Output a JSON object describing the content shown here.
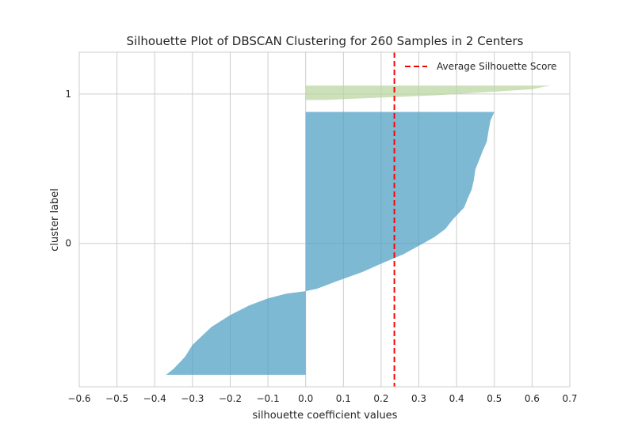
{
  "chart_data": {
    "type": "area",
    "title": "Silhouette Plot of DBSCAN Clustering for 260 Samples in 2 Centers",
    "xlabel": "silhouette coefficient values",
    "ylabel": "cluster label",
    "xlim": [
      -0.6,
      0.7
    ],
    "ylim": [
      -10,
      270
    ],
    "x_ticks": [
      "−0.6",
      "−0.5",
      "−0.4",
      "−0.3",
      "−0.2",
      "−0.1",
      "0.0",
      "0.1",
      "0.2",
      "0.3",
      "0.4",
      "0.5",
      "0.6",
      "0.7"
    ],
    "x_tick_values": [
      -0.6,
      -0.5,
      -0.4,
      -0.3,
      -0.2,
      -0.1,
      0.0,
      0.1,
      0.2,
      0.3,
      0.4,
      0.5,
      0.6,
      0.7
    ],
    "y_ticks": [
      "0",
      "1"
    ],
    "y_tick_values": [
      110,
      235
    ],
    "grid": true,
    "legend_position": "top-right",
    "average_line": {
      "label": "Average Silhouette Score",
      "x": 0.235,
      "color": "#ff0000"
    },
    "clusters": [
      {
        "label": "0",
        "color": "#4c9ec4",
        "y_start": 0,
        "y_end": 220,
        "profile": [
          [
            0.5,
            220
          ],
          [
            0.49,
            213
          ],
          [
            0.485,
            205
          ],
          [
            0.48,
            195
          ],
          [
            0.47,
            188
          ],
          [
            0.46,
            180
          ],
          [
            0.45,
            172
          ],
          [
            0.445,
            162
          ],
          [
            0.44,
            155
          ],
          [
            0.43,
            148
          ],
          [
            0.42,
            140
          ],
          [
            0.39,
            130
          ],
          [
            0.37,
            122
          ],
          [
            0.34,
            115
          ],
          [
            0.3,
            108
          ],
          [
            0.26,
            101
          ],
          [
            0.2,
            93
          ],
          [
            0.15,
            86
          ],
          [
            0.08,
            78
          ],
          [
            0.03,
            72
          ],
          [
            0.0,
            70
          ],
          [
            -0.05,
            68
          ],
          [
            -0.1,
            64
          ],
          [
            -0.15,
            58
          ],
          [
            -0.2,
            50
          ],
          [
            -0.25,
            40
          ],
          [
            -0.3,
            25
          ],
          [
            -0.32,
            15
          ],
          [
            -0.35,
            5
          ],
          [
            -0.37,
            0
          ]
        ]
      },
      {
        "label": "1",
        "color": "#b8d49e",
        "y_start": 230,
        "y_end": 242,
        "profile": [
          [
            0.65,
            242
          ],
          [
            0.63,
            241
          ],
          [
            0.6,
            239
          ],
          [
            0.5,
            237
          ],
          [
            0.35,
            234
          ],
          [
            0.2,
            232
          ],
          [
            0.05,
            230
          ],
          [
            0.0,
            230
          ]
        ]
      }
    ]
  }
}
